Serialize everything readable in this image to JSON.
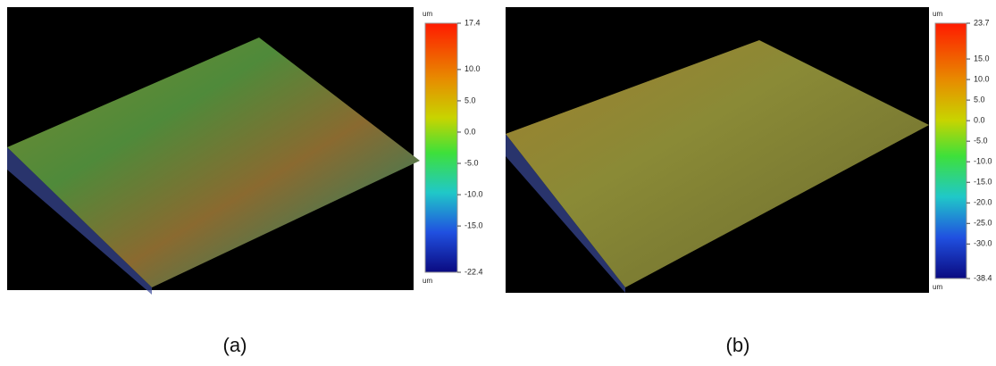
{
  "panels": [
    {
      "caption": "(a)",
      "colorbar": {
        "unit_top": "um",
        "unit_bottom": "um",
        "ticks": [
          17.4,
          {
            "value": 10,
            "label": "10.0"
          },
          {
            "value": 5,
            "label": "5.0"
          },
          {
            "value": 0,
            "label": "0.0"
          },
          {
            "value": -5,
            "label": "-5.0"
          },
          {
            "value": -10,
            "label": "-10.0"
          },
          {
            "value": -15,
            "label": "-15.0"
          },
          -22.4
        ]
      }
    },
    {
      "caption": "(b)",
      "colorbar": {
        "unit_top": "um",
        "unit_bottom": "um",
        "ticks": [
          23.7,
          {
            "value": 15,
            "label": "15.0"
          },
          {
            "value": 10,
            "label": "10.0"
          },
          {
            "value": 5,
            "label": "5.0"
          },
          {
            "value": 0,
            "label": "0.0"
          },
          {
            "value": -5,
            "label": "-5.0"
          },
          {
            "value": -10,
            "label": "-10.0"
          },
          {
            "value": -15,
            "label": "-15.0"
          },
          {
            "value": -20,
            "label": "-20.0"
          },
          {
            "value": -25,
            "label": "-25.0"
          },
          {
            "value": -30,
            "label": "-30.0"
          },
          -38.4
        ]
      }
    }
  ]
}
